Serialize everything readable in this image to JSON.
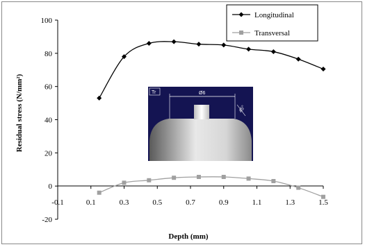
{
  "chart_data": {
    "type": "line",
    "title": "",
    "xlabel": "Depth (mm)",
    "ylabel": "Residual stress (N/mm²)",
    "x_ticks": [
      "-0.1",
      "0.1",
      "0.3",
      "0.5",
      "0.7",
      "0.9",
      "1.1",
      "1.3",
      "1.5"
    ],
    "y_ticks": [
      "-20",
      "0",
      "20",
      "40",
      "60",
      "80",
      "100"
    ],
    "xlim": [
      -0.1,
      1.5
    ],
    "ylim": [
      -20,
      100
    ],
    "grid": false,
    "legend_position": "top-right",
    "series": [
      {
        "name": "Longitudinal",
        "color": "#000000",
        "marker": "diamond",
        "x": [
          0.15,
          0.3,
          0.45,
          0.6,
          0.75,
          0.9,
          1.05,
          1.2,
          1.35,
          1.5
        ],
        "y": [
          53,
          78,
          86,
          87,
          85.5,
          85,
          82.5,
          81,
          76.5,
          70.5
        ]
      },
      {
        "name": "Transversal",
        "color": "#a0a0a0",
        "marker": "square",
        "x": [
          0.15,
          0.3,
          0.45,
          0.6,
          0.75,
          0.9,
          1.05,
          1.2,
          1.35,
          1.5
        ],
        "y": [
          -4,
          2,
          3.5,
          5,
          5.5,
          5.5,
          4.5,
          3,
          -1,
          -6.5
        ]
      }
    ]
  },
  "inset": {
    "corner_label": "Tr",
    "dimension_label": "Ø6",
    "angle_label": "45°"
  }
}
